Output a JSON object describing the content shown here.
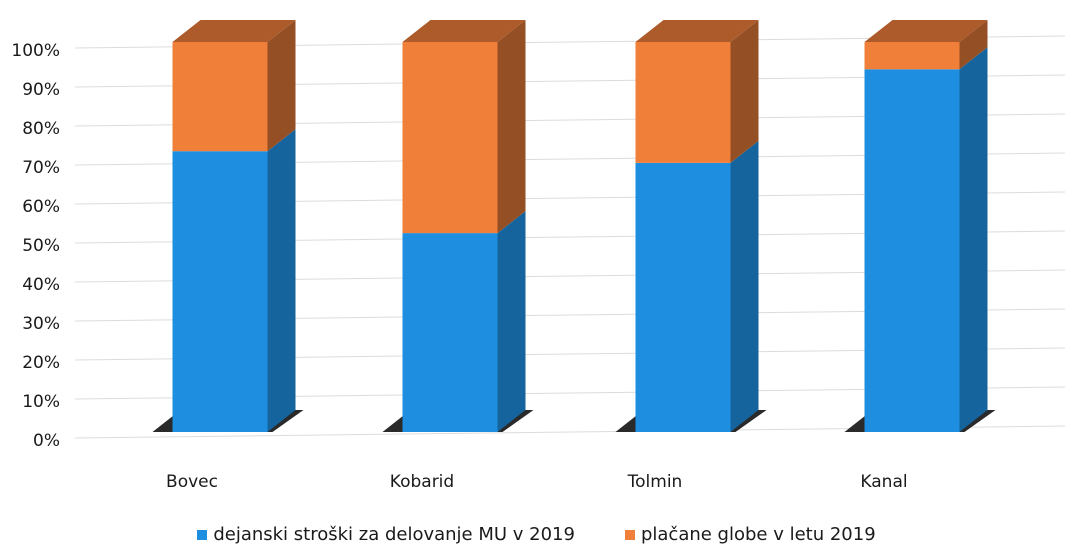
{
  "chart_data": {
    "type": "bar",
    "stacked": true,
    "percent_stacked": true,
    "three_d": true,
    "categories": [
      "Bovec",
      "Kobarid",
      "Tolmin",
      "Kanal"
    ],
    "series": [
      {
        "name": "dejanski stroški za delovanje MU v 2019",
        "color": "#1E8FE0",
        "values": [
          72,
          51,
          69,
          93
        ]
      },
      {
        "name": "plačane globe v letu 2019",
        "color": "#F07F3A",
        "values": [
          28,
          49,
          31,
          7
        ]
      }
    ],
    "yticks": [
      "0%",
      "10%",
      "20%",
      "30%",
      "40%",
      "50%",
      "60%",
      "70%",
      "80%",
      "90%",
      "100%"
    ],
    "ylim": [
      0,
      100
    ],
    "grid": true,
    "legend_position": "bottom"
  }
}
